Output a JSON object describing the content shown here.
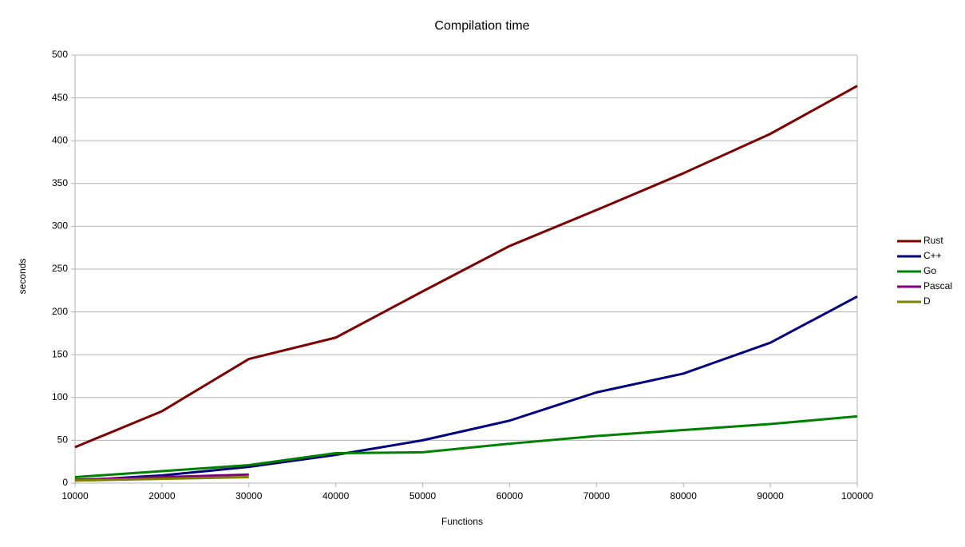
{
  "chart_data": {
    "type": "line",
    "title": "Compilation time",
    "x_label": "Functions",
    "y_label": "seconds",
    "x": [
      10000,
      20000,
      30000,
      40000,
      50000,
      60000,
      70000,
      80000,
      90000,
      100000
    ],
    "series": [
      {
        "name": "Rust",
        "color": "#7f0000",
        "values": [
          42,
          84,
          145,
          170,
          224,
          277,
          319,
          362,
          408,
          464
        ]
      },
      {
        "name": "C++",
        "color": "#000080",
        "values": [
          3,
          9,
          19,
          33,
          50,
          73,
          106,
          128,
          164,
          218
        ]
      },
      {
        "name": "Go",
        "color": "#008000",
        "values": [
          7,
          14,
          21,
          35,
          36,
          46,
          55,
          62,
          69,
          78
        ]
      },
      {
        "name": "Pascal",
        "color": "#800080",
        "values": [
          4,
          7,
          10,
          null,
          null,
          null,
          null,
          null,
          null,
          null
        ]
      },
      {
        "name": "D",
        "color": "#808000",
        "values": [
          3,
          5,
          7,
          null,
          null,
          null,
          null,
          null,
          null,
          null
        ]
      }
    ],
    "xlim": [
      10000,
      100000
    ],
    "xticks": [
      10000,
      20000,
      30000,
      40000,
      50000,
      60000,
      70000,
      80000,
      90000,
      100000
    ],
    "ylim": [
      0,
      500
    ],
    "yticks": [
      0,
      50,
      100,
      150,
      200,
      250,
      300,
      350,
      400,
      450,
      500
    ],
    "grid": true,
    "legend": "right"
  }
}
